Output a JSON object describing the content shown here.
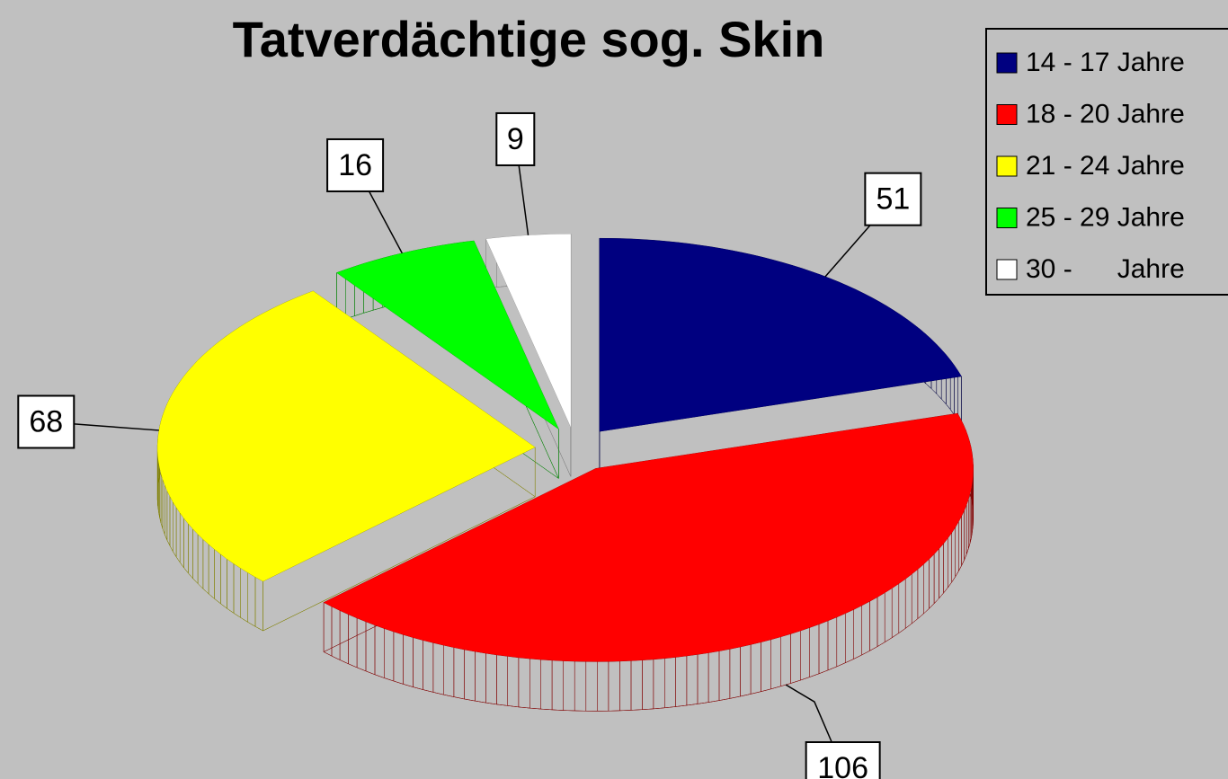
{
  "chart_data": {
    "type": "pie",
    "title": "Tatverdächtige sog. Skin",
    "categories": [
      "14 - 17 Jahre",
      "18 - 20 Jahre",
      "21 - 24 Jahre",
      "25 - 29 Jahre",
      "30 -      Jahre"
    ],
    "values": [
      51,
      106,
      68,
      16,
      9
    ],
    "colors": [
      "#000080",
      "#ff0000",
      "#ffff00",
      "#00ff00",
      "#ffffff"
    ],
    "legend": "upper right"
  }
}
